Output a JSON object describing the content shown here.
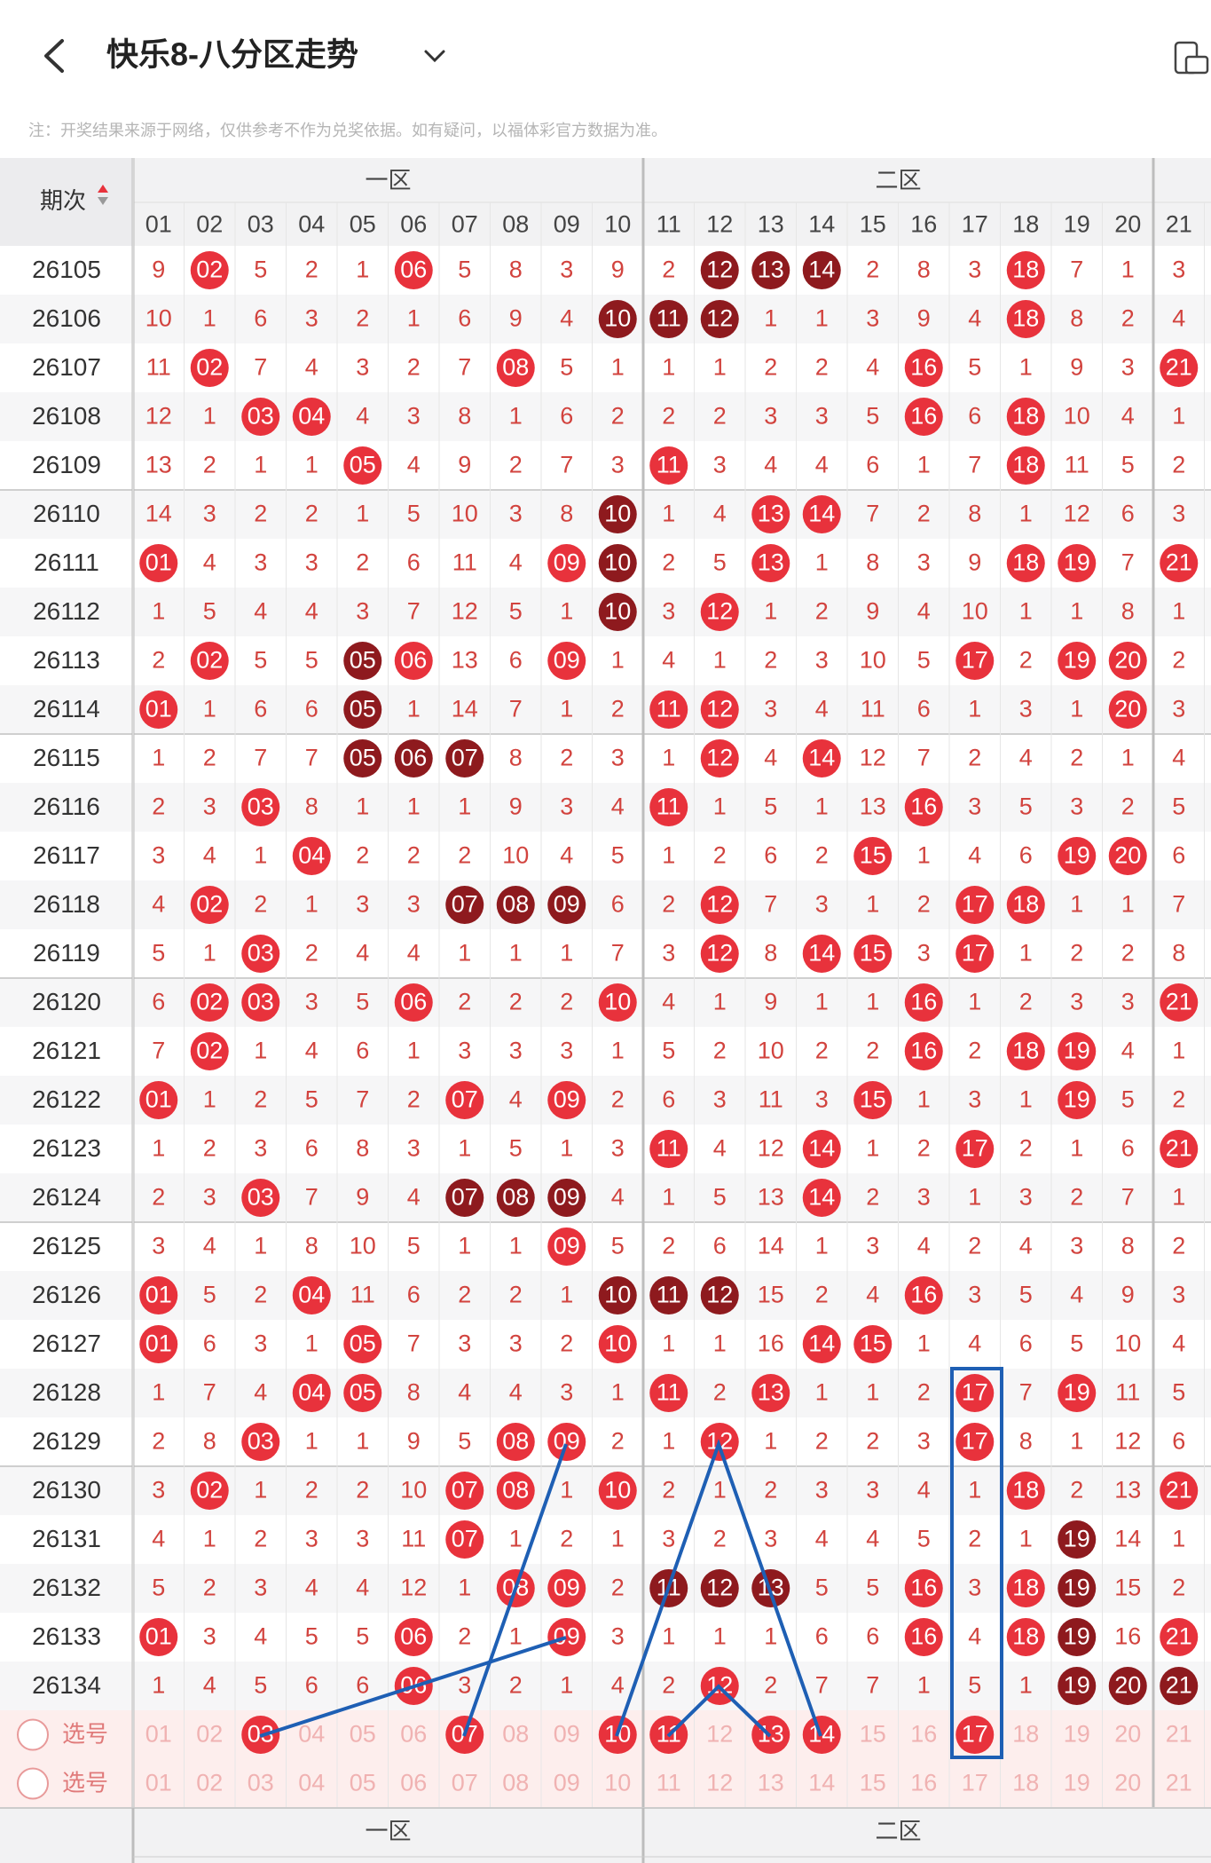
{
  "header": {
    "title": "快乐8-八分区走势",
    "note": "注：开奖结果来源于网络，仅供参考不作为兑奖依据。如有疑问，以福体彩官方数据为准。"
  },
  "table": {
    "period_label": "期次",
    "zones": [
      "一区",
      "二区"
    ],
    "columns": [
      "01",
      "02",
      "03",
      "04",
      "05",
      "06",
      "07",
      "08",
      "09",
      "10",
      "11",
      "12",
      "13",
      "14",
      "15",
      "16",
      "17",
      "18",
      "19",
      "20",
      "21"
    ],
    "colors": {
      "hit": "#e8323c",
      "dark": "#8e1a1e",
      "miss": "#d2433e",
      "faint": "#f0b2b2"
    },
    "rows": [
      {
        "period": "26105",
        "cells": [
          "9",
          "02",
          "5",
          "2",
          "1",
          "06",
          "5",
          "8",
          "3",
          "9",
          "2",
          "12",
          "13",
          "14",
          "2",
          "8",
          "3",
          "18",
          "7",
          "1",
          "3"
        ],
        "style": "mhmmmhmmmmmdddmmmhmmm"
      },
      {
        "period": "26106",
        "cells": [
          "10",
          "1",
          "6",
          "3",
          "2",
          "1",
          "6",
          "9",
          "4",
          "10",
          "11",
          "12",
          "1",
          "1",
          "3",
          "9",
          "4",
          "18",
          "8",
          "2",
          "4"
        ],
        "style": "mmmmmmmmmdddmmmmmhmmm"
      },
      {
        "period": "26107",
        "cells": [
          "11",
          "02",
          "7",
          "4",
          "3",
          "2",
          "7",
          "08",
          "5",
          "1",
          "1",
          "1",
          "2",
          "2",
          "4",
          "16",
          "5",
          "1",
          "9",
          "3",
          "21"
        ],
        "style": "mhmmmmmhmmmmmmmhmmmmh"
      },
      {
        "period": "26108",
        "cells": [
          "12",
          "1",
          "03",
          "04",
          "4",
          "3",
          "8",
          "1",
          "6",
          "2",
          "2",
          "2",
          "3",
          "3",
          "5",
          "16",
          "6",
          "18",
          "10",
          "4",
          "1"
        ],
        "style": "mmhhmmmmmmmmmmmhmhmmm"
      },
      {
        "period": "26109",
        "cells": [
          "13",
          "2",
          "1",
          "1",
          "05",
          "4",
          "9",
          "2",
          "7",
          "3",
          "11",
          "3",
          "4",
          "4",
          "6",
          "1",
          "7",
          "18",
          "11",
          "5",
          "2"
        ],
        "style": "mmmmhmmmmmhmmmmmmhmmm"
      },
      {
        "period": "26110",
        "cells": [
          "14",
          "3",
          "2",
          "2",
          "1",
          "5",
          "10",
          "3",
          "8",
          "10",
          "1",
          "4",
          "13",
          "14",
          "7",
          "2",
          "8",
          "1",
          "12",
          "6",
          "3"
        ],
        "style": "mmmmmmmmmdmmhhmmmmmmm"
      },
      {
        "period": "26111",
        "cells": [
          "01",
          "4",
          "3",
          "3",
          "2",
          "6",
          "11",
          "4",
          "09",
          "10",
          "2",
          "5",
          "13",
          "1",
          "8",
          "3",
          "9",
          "18",
          "19",
          "7",
          "21"
        ],
        "style": "hmmmmmmmhdmmhmmmmhhmh"
      },
      {
        "period": "26112",
        "cells": [
          "1",
          "5",
          "4",
          "4",
          "3",
          "7",
          "12",
          "5",
          "1",
          "10",
          "3",
          "12",
          "1",
          "2",
          "9",
          "4",
          "10",
          "1",
          "1",
          "8",
          "1"
        ],
        "style": "mmmmmmmmmdmhmmmmmmmmm"
      },
      {
        "period": "26113",
        "cells": [
          "2",
          "02",
          "5",
          "5",
          "05",
          "06",
          "13",
          "6",
          "09",
          "1",
          "4",
          "1",
          "2",
          "3",
          "10",
          "5",
          "17",
          "2",
          "19",
          "20",
          "2"
        ],
        "style": "mhmmdhmmhmmmmmmmhmhhm"
      },
      {
        "period": "26114",
        "cells": [
          "01",
          "1",
          "6",
          "6",
          "05",
          "1",
          "14",
          "7",
          "1",
          "2",
          "11",
          "12",
          "3",
          "4",
          "11",
          "6",
          "1",
          "3",
          "1",
          "20",
          "3"
        ],
        "style": "hmmmdmmmmmhhmmmmmmmhm"
      },
      {
        "period": "26115",
        "cells": [
          "1",
          "2",
          "7",
          "7",
          "05",
          "06",
          "07",
          "8",
          "2",
          "3",
          "1",
          "12",
          "4",
          "14",
          "12",
          "7",
          "2",
          "4",
          "2",
          "1",
          "4"
        ],
        "style": "mmmmdddmmmmhmhmmmmmmm"
      },
      {
        "period": "26116",
        "cells": [
          "2",
          "3",
          "03",
          "8",
          "1",
          "1",
          "1",
          "9",
          "3",
          "4",
          "11",
          "1",
          "5",
          "1",
          "13",
          "16",
          "3",
          "5",
          "3",
          "2",
          "5"
        ],
        "style": "mmhmmmmmmmhmmmmhmmmmm"
      },
      {
        "period": "26117",
        "cells": [
          "3",
          "4",
          "1",
          "04",
          "2",
          "2",
          "2",
          "10",
          "4",
          "5",
          "1",
          "2",
          "6",
          "2",
          "15",
          "1",
          "4",
          "6",
          "19",
          "20",
          "6"
        ],
        "style": "mmmhmmmmmmmmmmhmmmhhm"
      },
      {
        "period": "26118",
        "cells": [
          "4",
          "02",
          "2",
          "1",
          "3",
          "3",
          "07",
          "08",
          "09",
          "6",
          "2",
          "12",
          "7",
          "3",
          "1",
          "2",
          "17",
          "18",
          "1",
          "1",
          "7"
        ],
        "style": "mhmmmmdddmmhmmmmhhmmm"
      },
      {
        "period": "26119",
        "cells": [
          "5",
          "1",
          "03",
          "2",
          "4",
          "4",
          "1",
          "1",
          "1",
          "7",
          "3",
          "12",
          "8",
          "14",
          "15",
          "3",
          "17",
          "1",
          "2",
          "2",
          "8"
        ],
        "style": "mmhmmmmmmmmhmhhmhmmmm"
      },
      {
        "period": "26120",
        "cells": [
          "6",
          "02",
          "03",
          "3",
          "5",
          "06",
          "2",
          "2",
          "2",
          "10",
          "4",
          "1",
          "9",
          "1",
          "1",
          "16",
          "1",
          "2",
          "3",
          "3",
          "21"
        ],
        "style": "mhhmmhmmmhmmmmmhmmmmh"
      },
      {
        "period": "26121",
        "cells": [
          "7",
          "02",
          "1",
          "4",
          "6",
          "1",
          "3",
          "3",
          "3",
          "1",
          "5",
          "2",
          "10",
          "2",
          "2",
          "16",
          "2",
          "18",
          "19",
          "4",
          "1"
        ],
        "style": "mhmmmmmmmmmmmmmhmhhmm"
      },
      {
        "period": "26122",
        "cells": [
          "01",
          "1",
          "2",
          "5",
          "7",
          "2",
          "07",
          "4",
          "09",
          "2",
          "6",
          "3",
          "11",
          "3",
          "15",
          "1",
          "3",
          "1",
          "19",
          "5",
          "2"
        ],
        "style": "hmmmmmhmhmmmmmhmmmhmm"
      },
      {
        "period": "26123",
        "cells": [
          "1",
          "2",
          "3",
          "6",
          "8",
          "3",
          "1",
          "5",
          "1",
          "3",
          "11",
          "4",
          "12",
          "14",
          "1",
          "2",
          "17",
          "2",
          "1",
          "6",
          "21"
        ],
        "style": "mmmmmmmmmmhmmhmmhmmmh"
      },
      {
        "period": "26124",
        "cells": [
          "2",
          "3",
          "03",
          "7",
          "9",
          "4",
          "07",
          "08",
          "09",
          "4",
          "1",
          "5",
          "13",
          "14",
          "2",
          "3",
          "1",
          "3",
          "2",
          "7",
          "1"
        ],
        "style": "mmhmmmdddmmmmhmmmmmmm"
      },
      {
        "period": "26125",
        "cells": [
          "3",
          "4",
          "1",
          "8",
          "10",
          "5",
          "1",
          "1",
          "09",
          "5",
          "2",
          "6",
          "14",
          "1",
          "3",
          "4",
          "2",
          "4",
          "3",
          "8",
          "2"
        ],
        "style": "mmmmmmmmhmmmmmmmmmmmm"
      },
      {
        "period": "26126",
        "cells": [
          "01",
          "5",
          "2",
          "04",
          "11",
          "6",
          "2",
          "2",
          "1",
          "10",
          "11",
          "12",
          "15",
          "2",
          "4",
          "16",
          "3",
          "5",
          "4",
          "9",
          "3"
        ],
        "style": "hmmhmmmmmdddmmmhmmmmm"
      },
      {
        "period": "26127",
        "cells": [
          "01",
          "6",
          "3",
          "1",
          "05",
          "7",
          "3",
          "3",
          "2",
          "10",
          "1",
          "1",
          "16",
          "14",
          "15",
          "1",
          "4",
          "6",
          "5",
          "10",
          "4"
        ],
        "style": "hmmmhmmmmhmmmhhmmmmmm"
      },
      {
        "period": "26128",
        "cells": [
          "1",
          "7",
          "4",
          "04",
          "05",
          "8",
          "4",
          "4",
          "3",
          "1",
          "11",
          "2",
          "13",
          "1",
          "1",
          "2",
          "17",
          "7",
          "19",
          "11",
          "5"
        ],
        "style": "mmmhhmmmmmhmhmmmhmhmm"
      },
      {
        "period": "26129",
        "cells": [
          "2",
          "8",
          "03",
          "1",
          "1",
          "9",
          "5",
          "08",
          "09",
          "2",
          "1",
          "12",
          "1",
          "2",
          "2",
          "3",
          "17",
          "8",
          "1",
          "12",
          "6"
        ],
        "style": "mmhmmmmhhmmhmmmmhmmmm"
      },
      {
        "period": "26130",
        "cells": [
          "3",
          "02",
          "1",
          "2",
          "2",
          "10",
          "07",
          "08",
          "1",
          "10",
          "2",
          "1",
          "2",
          "3",
          "3",
          "4",
          "1",
          "18",
          "2",
          "13",
          "21"
        ],
        "style": "mhmmmmhhmhmmmmmmmhmmh"
      },
      {
        "period": "26131",
        "cells": [
          "4",
          "1",
          "2",
          "3",
          "3",
          "11",
          "07",
          "1",
          "2",
          "1",
          "3",
          "2",
          "3",
          "4",
          "4",
          "5",
          "2",
          "1",
          "19",
          "14",
          "1"
        ],
        "style": "mmmmmmhmmmmmmmmmmmdmm"
      },
      {
        "period": "26132",
        "cells": [
          "5",
          "2",
          "3",
          "4",
          "4",
          "12",
          "1",
          "08",
          "09",
          "2",
          "11",
          "12",
          "13",
          "5",
          "5",
          "16",
          "3",
          "18",
          "19",
          "15",
          "2"
        ],
        "style": "mmmmmmmhhmdddmmhmhdmm"
      },
      {
        "period": "26133",
        "cells": [
          "01",
          "3",
          "4",
          "5",
          "5",
          "06",
          "2",
          "1",
          "09",
          "3",
          "1",
          "1",
          "1",
          "6",
          "6",
          "16",
          "4",
          "18",
          "19",
          "16",
          "21"
        ],
        "style": "hmmmmhmmhmmmmmmhmhdmh"
      },
      {
        "period": "26134",
        "cells": [
          "1",
          "4",
          "5",
          "6",
          "6",
          "06",
          "3",
          "2",
          "1",
          "4",
          "2",
          "12",
          "2",
          "7",
          "7",
          "1",
          "5",
          "1",
          "19",
          "20",
          "21"
        ],
        "style": "mmmmmhmmmmmhmmmmmmddd"
      }
    ],
    "select_rows": [
      {
        "label": "选号",
        "cells": [
          "01",
          "02",
          "03",
          "04",
          "05",
          "06",
          "07",
          "08",
          "09",
          "10",
          "11",
          "12",
          "13",
          "14",
          "15",
          "16",
          "17",
          "18",
          "19",
          "20",
          "21"
        ],
        "style": "mmhmmmhmmhhmhhmmhmmmm"
      },
      {
        "label": "选号",
        "cells": [
          "01",
          "02",
          "03",
          "04",
          "05",
          "06",
          "07",
          "08",
          "09",
          "10",
          "11",
          "12",
          "13",
          "14",
          "15",
          "16",
          "17",
          "18",
          "19",
          "20",
          "21"
        ],
        "style": "mmmmmmmmmmmmmmmmmmmmm"
      }
    ]
  }
}
